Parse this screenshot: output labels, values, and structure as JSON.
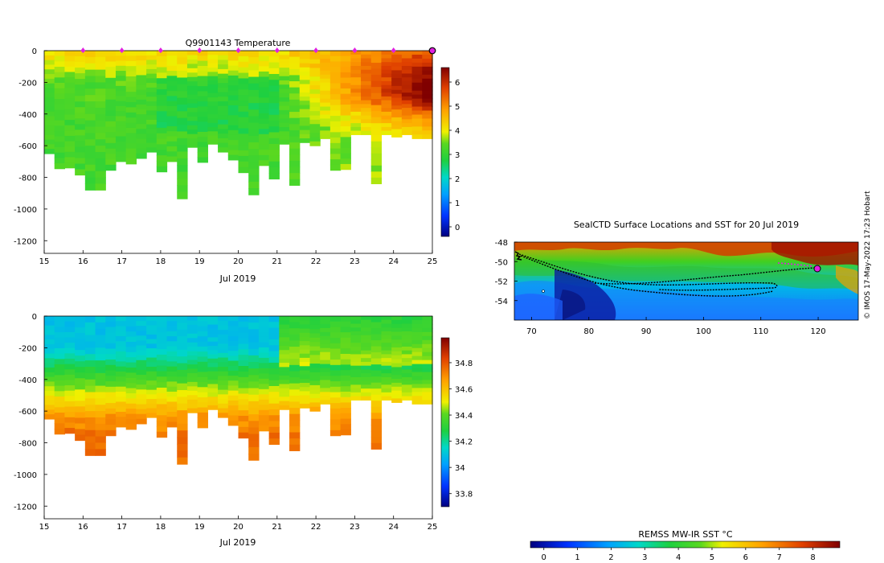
{
  "chart_data": [
    {
      "type": "heatmap",
      "title": "Q9901143  Temperature",
      "xlabel": "Jul 2019",
      "ylabel": "",
      "xlim": [
        15,
        25
      ],
      "ylim": [
        -1280,
        0
      ],
      "x_ticks": [
        "15",
        "16",
        "17",
        "18",
        "19",
        "20",
        "21",
        "22",
        "23",
        "24",
        "25"
      ],
      "y_ticks": [
        "0",
        "-200",
        "-400",
        "-600",
        "-800",
        "-1000",
        "-1200"
      ],
      "colorbar": {
        "min": -0.4,
        "max": 6.6,
        "ticks": [
          "0",
          "1",
          "2",
          "3",
          "4",
          "5",
          "6"
        ]
      },
      "profile_max_depth": [
        650,
        745,
        740,
        785,
        880,
        880,
        755,
        700,
        715,
        680,
        640,
        765,
        700,
        935,
        610,
        705,
        590,
        640,
        690,
        770,
        910,
        725,
        810,
        590,
        850,
        580,
        600,
        555,
        755,
        750,
        530,
        530,
        840,
        530,
        545,
        530,
        555,
        555
      ],
      "surface_markers_day": [
        16,
        17,
        18,
        19,
        20,
        21,
        22,
        23,
        24,
        25
      ]
    },
    {
      "type": "heatmap",
      "title": "",
      "xlabel": "Jul 2019",
      "xlim": [
        15,
        25
      ],
      "ylim": [
        -1280,
        0
      ],
      "x_ticks": [
        "15",
        "16",
        "17",
        "18",
        "19",
        "20",
        "21",
        "22",
        "23",
        "24",
        "25"
      ],
      "y_ticks": [
        "0",
        "-200",
        "-400",
        "-600",
        "-800",
        "-1000",
        "-1200"
      ],
      "colorbar": {
        "min": 33.7,
        "max": 34.99,
        "ticks": [
          "33.8",
          "34",
          "34.2",
          "34.4",
          "34.6",
          "34.8"
        ]
      }
    },
    {
      "type": "heatmap",
      "title": "SealCTD Surface Locations and SST for 20 Jul 2019",
      "xlim": [
        67,
        127
      ],
      "ylim": [
        -56,
        -48
      ],
      "x_ticks": [
        "70",
        "80",
        "90",
        "100",
        "110",
        "120"
      ],
      "y_ticks": [
        "-48",
        "-50",
        "-52",
        "-54"
      ],
      "colorbar_label": "REMSS MW-IR SST °C",
      "colorbar_ticks": [
        "0",
        "1",
        "2",
        "3",
        "4",
        "5",
        "6",
        "7",
        "8"
      ],
      "colorbar_range": [
        -0.4,
        8.8
      ]
    }
  ],
  "credit": "© IMOS 17-May-2022 17:23 Hobart"
}
